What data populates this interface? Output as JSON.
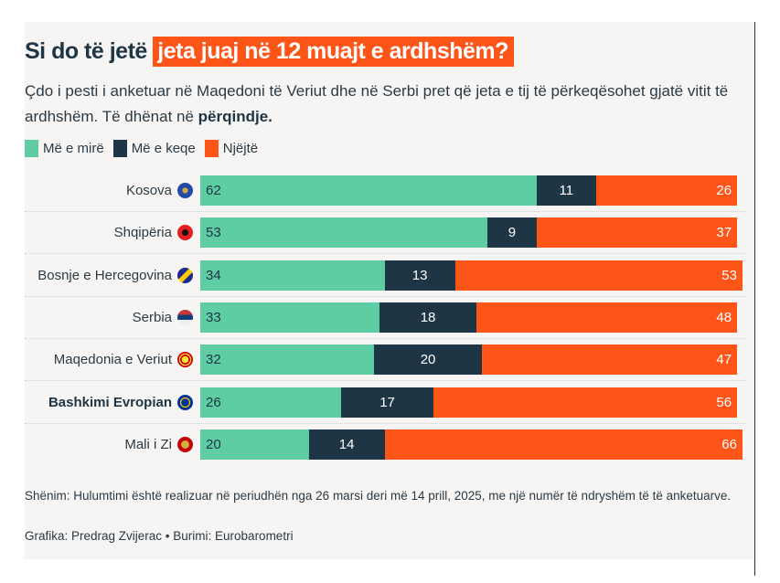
{
  "title": {
    "prefix": "Si do të jetë",
    "highlight": "jeta juaj në 12 muajt e ardhshëm?"
  },
  "subtitle": {
    "text": "Çdo i pesti i anketuar në Maqedoni të Veriut dhe në Serbi pret që jeta e tij të përkeqësohet gjatë vitit të ardhshëm. Të dhënat në",
    "bold": "përqindje."
  },
  "colors": {
    "better": "#5ecda4",
    "worse": "#1e3545",
    "same": "#fd5418",
    "background": "#f6f5f4"
  },
  "chart_data": {
    "type": "bar",
    "orientation": "horizontal",
    "stacked": true,
    "title": "Si do të jetë jeta juaj në 12 muajt e ardhshëm?",
    "unit": "%",
    "legend": "top-left",
    "categories": [
      "Kosova",
      "Shqipëria",
      "Bosnje e Hercegovina",
      "Serbia",
      "Maqedonia e Veriut",
      "Bashkimi Evropian",
      "Mali i Zi"
    ],
    "category_icons": [
      "flag-kosovo",
      "flag-albania",
      "flag-bosnia",
      "flag-serbia",
      "flag-north-macedonia",
      "flag-eu",
      "flag-montenegro"
    ],
    "bold_categories": [
      "Bashkimi Evropian"
    ],
    "series": [
      {
        "name": "Më e mirë",
        "key": "better",
        "values": [
          62,
          53,
          34,
          33,
          32,
          26,
          20
        ]
      },
      {
        "name": "Më e keqe",
        "key": "worse",
        "values": [
          11,
          9,
          13,
          18,
          20,
          17,
          14
        ]
      },
      {
        "name": "Njëjtë",
        "key": "same",
        "values": [
          26,
          37,
          53,
          48,
          47,
          56,
          66
        ]
      }
    ],
    "xlim": [
      0,
      100
    ],
    "grid": false
  },
  "footer": {
    "note": "Shënim: Hulumtimi është realizuar në periudhën nga 26 marsi deri më 14 prill, 2025, me një numër të ndryshëm të të anketuarve.",
    "credit": "Grafika: Predrag Zvijerac • Burimi: Eurobarometri"
  }
}
